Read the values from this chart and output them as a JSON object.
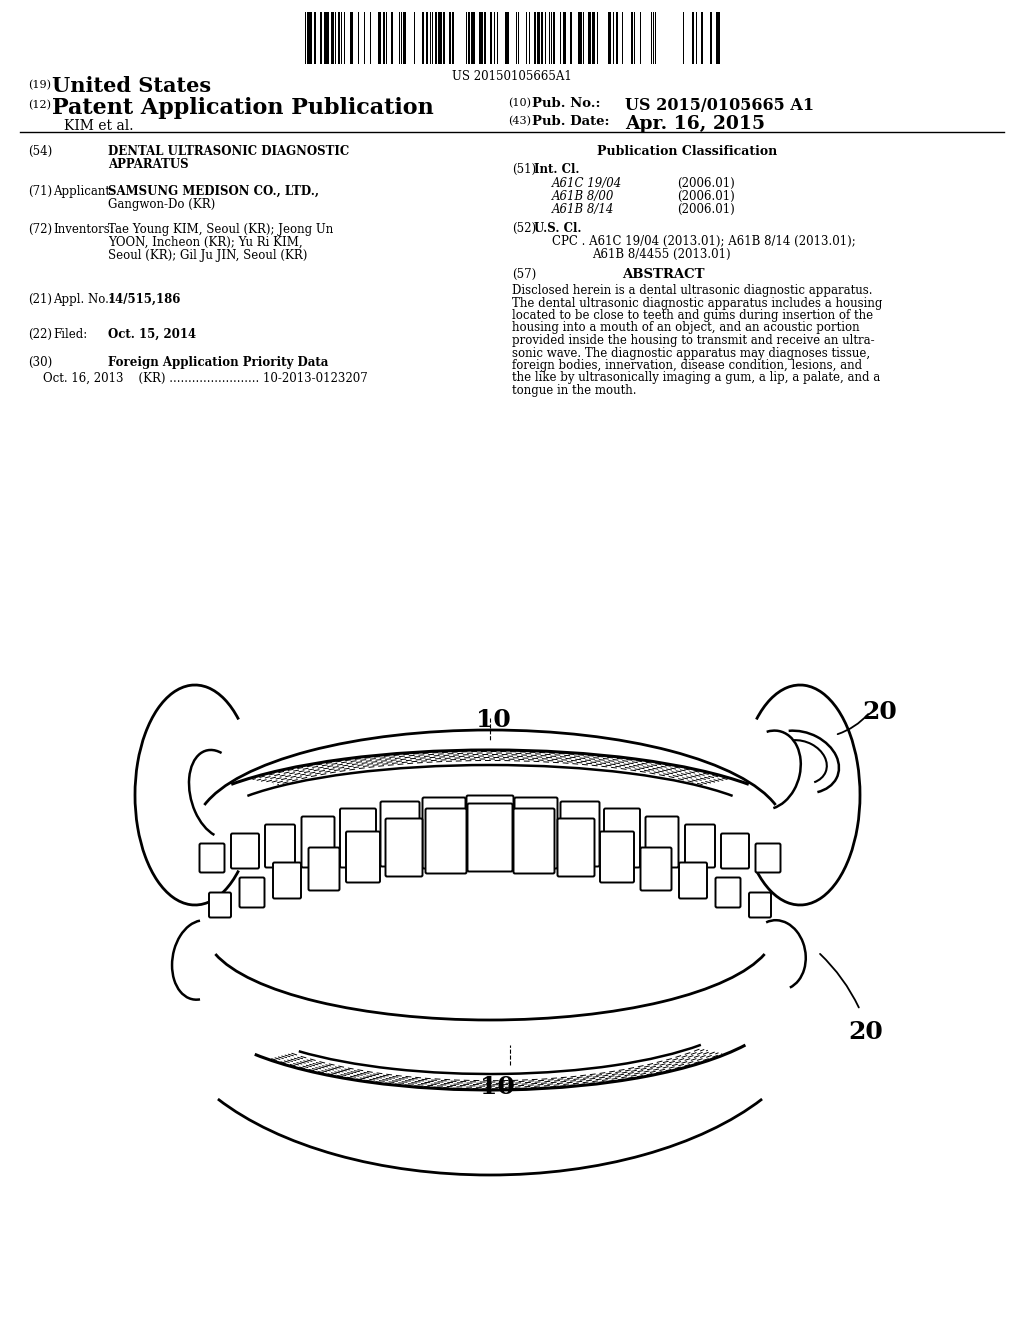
{
  "background_color": "#ffffff",
  "barcode_text": "US 20150105665A1",
  "num19_label": "(19)",
  "united_states": "United States",
  "num12_label": "(12)",
  "patent_app_pub": "Patent Application Publication",
  "kim_et_al": "KIM et al.",
  "num10_label": "(10)",
  "pub_no_label": "Pub. No.:",
  "pub_no_value": "US 2015/0105665 A1",
  "num43_label": "(43)",
  "pub_date_label": "Pub. Date:",
  "pub_date_value": "Apr. 16, 2015",
  "num54_label": "(54)",
  "title_line1": "DENTAL ULTRASONIC DIAGNOSTIC",
  "title_line2": "APPARATUS",
  "num71_label": "(71)",
  "applicant_label": "Applicant:",
  "applicant_name": "SAMSUNG MEDISON CO., LTD.,",
  "applicant_loc": "Gangwon-Do (KR)",
  "num72_label": "(72)",
  "inventors_label": "Inventors:",
  "inv_line1": "Tae Young KIM, Seoul (KR); Jeong Un",
  "inv_line2": "YOON, Incheon (KR); Yu Ri KIM,",
  "inv_line3": "Seoul (KR); Gil Ju JIN, Seoul (KR)",
  "num21_label": "(21)",
  "appl_no_label": "Appl. No.:",
  "appl_no_value": "14/515,186",
  "num22_label": "(22)",
  "filed_label": "Filed:",
  "filed_value": "Oct. 15, 2014",
  "num30_label": "(30)",
  "foreign_app_label": "Foreign Application Priority Data",
  "foreign_app_data": "Oct. 16, 2013    (KR) ........................ 10-2013-0123207",
  "pub_class_label": "Publication Classification",
  "num51_label": "(51)",
  "int_cl_label": "Int. Cl.",
  "int_cl_1": "A61C 19/04",
  "int_cl_1_year": "(2006.01)",
  "int_cl_2": "A61B 8/00",
  "int_cl_2_year": "(2006.01)",
  "int_cl_3": "A61B 8/14",
  "int_cl_3_year": "(2006.01)",
  "num52_label": "(52)",
  "us_cl_label": "U.S. Cl.",
  "cpc_line1": "CPC . A61C 19/04 (2013.01); A61B 8/14 (2013.01);",
  "cpc_line2": "A61B 8/4455 (2013.01)",
  "num57_label": "(57)",
  "abstract_label": "ABSTRACT",
  "abs_line1": "Disclosed herein is a dental ultrasonic diagnostic apparatus.",
  "abs_line2": "The dental ultrasonic diagnostic apparatus includes a housing",
  "abs_line3": "located to be close to teeth and gums during insertion of the",
  "abs_line4": "housing into a mouth of an object, and an acoustic portion",
  "abs_line5": "provided inside the housing to transmit and receive an ultra-",
  "abs_line6": "sonic wave. The diagnostic apparatus may diagnoses tissue,",
  "abs_line7": "foreign bodies, innervation, disease condition, lesions, and",
  "abs_line8": "the like by ultrasonically imaging a gum, a lip, a palate, and a",
  "abs_line9": "tongue in the mouth.",
  "label_10_top": "10",
  "label_20_top": "20",
  "label_10_bot": "10",
  "label_20_bot": "20"
}
